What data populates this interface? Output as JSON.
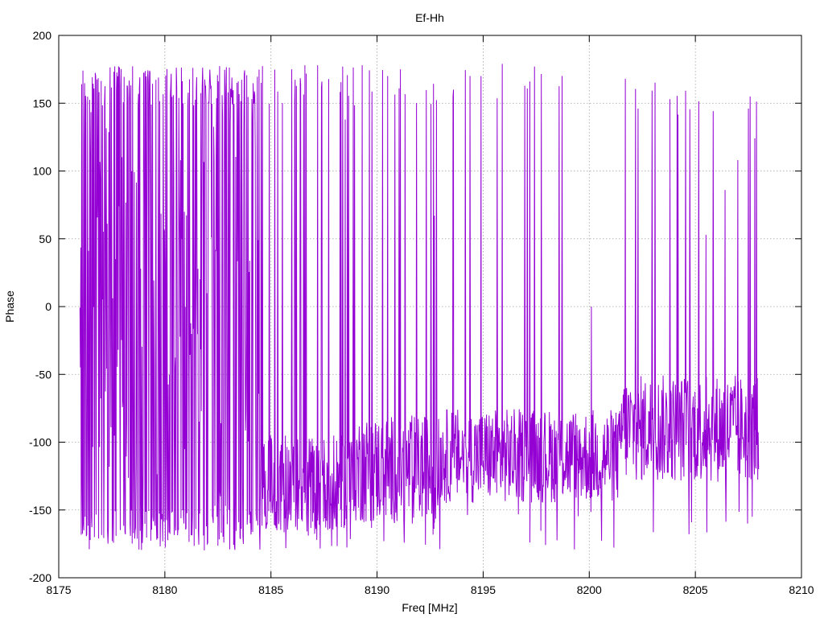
{
  "chart_data": {
    "type": "line",
    "title": "Ef-Hh",
    "xlabel": "Freq [MHz]",
    "ylabel": "Phase",
    "xlim": [
      8175,
      8210
    ],
    "ylim": [
      -200,
      200
    ],
    "xticks": [
      8175,
      8180,
      8185,
      8190,
      8195,
      8200,
      8205,
      8210
    ],
    "yticks": [
      -200,
      -150,
      -100,
      -50,
      0,
      50,
      100,
      150,
      200
    ],
    "grid": true,
    "series": [
      {
        "color": "#9400d3",
        "x_start": 8176.0,
        "x_end": 8208.0,
        "segments": [
          {
            "from": 8176.0,
            "to": 8184.5,
            "low": -180,
            "high": 178,
            "wrap_prob": 0.55
          },
          {
            "from": 8184.5,
            "to": 8189.0,
            "low": -180,
            "high": 178,
            "wrap_prob": 0.25,
            "base": -130,
            "jitter": 35
          },
          {
            "from": 8189.0,
            "to": 8193.0,
            "low": -180,
            "high": 178,
            "wrap_prob": 0.1,
            "base": -120,
            "jitter": 40
          },
          {
            "from": 8193.0,
            "to": 8201.5,
            "low": -180,
            "high": 180,
            "wrap_prob": 0.04,
            "base": -110,
            "jitter": 35
          },
          {
            "from": 8201.5,
            "to": 8208.0,
            "low": -170,
            "high": 168,
            "wrap_prob": 0.05,
            "base": -90,
            "jitter": 40
          }
        ],
        "spikes": [
          {
            "x": 8186.6,
            "y": 178
          },
          {
            "x": 8187.2,
            "y": 178
          },
          {
            "x": 8188.5,
            "y": 138
          },
          {
            "x": 8189.3,
            "y": 178
          },
          {
            "x": 8190.5,
            "y": 170
          },
          {
            "x": 8191.1,
            "y": 175
          },
          {
            "x": 8192.7,
            "y": 67
          },
          {
            "x": 8193.6,
            "y": 160
          },
          {
            "x": 8194.9,
            "y": 170
          },
          {
            "x": 8195.9,
            "y": 179
          },
          {
            "x": 8197.2,
            "y": 166
          },
          {
            "x": 8200.1,
            "y": 0
          },
          {
            "x": 8201.7,
            "y": 168
          },
          {
            "x": 8202.3,
            "y": 146
          },
          {
            "x": 8203.8,
            "y": 87
          },
          {
            "x": 8205.5,
            "y": 53
          },
          {
            "x": 8206.4,
            "y": 86
          },
          {
            "x": 8207.0,
            "y": 108
          },
          {
            "x": 8207.5,
            "y": 146
          },
          {
            "x": 8207.8,
            "y": 124
          }
        ]
      }
    ]
  }
}
